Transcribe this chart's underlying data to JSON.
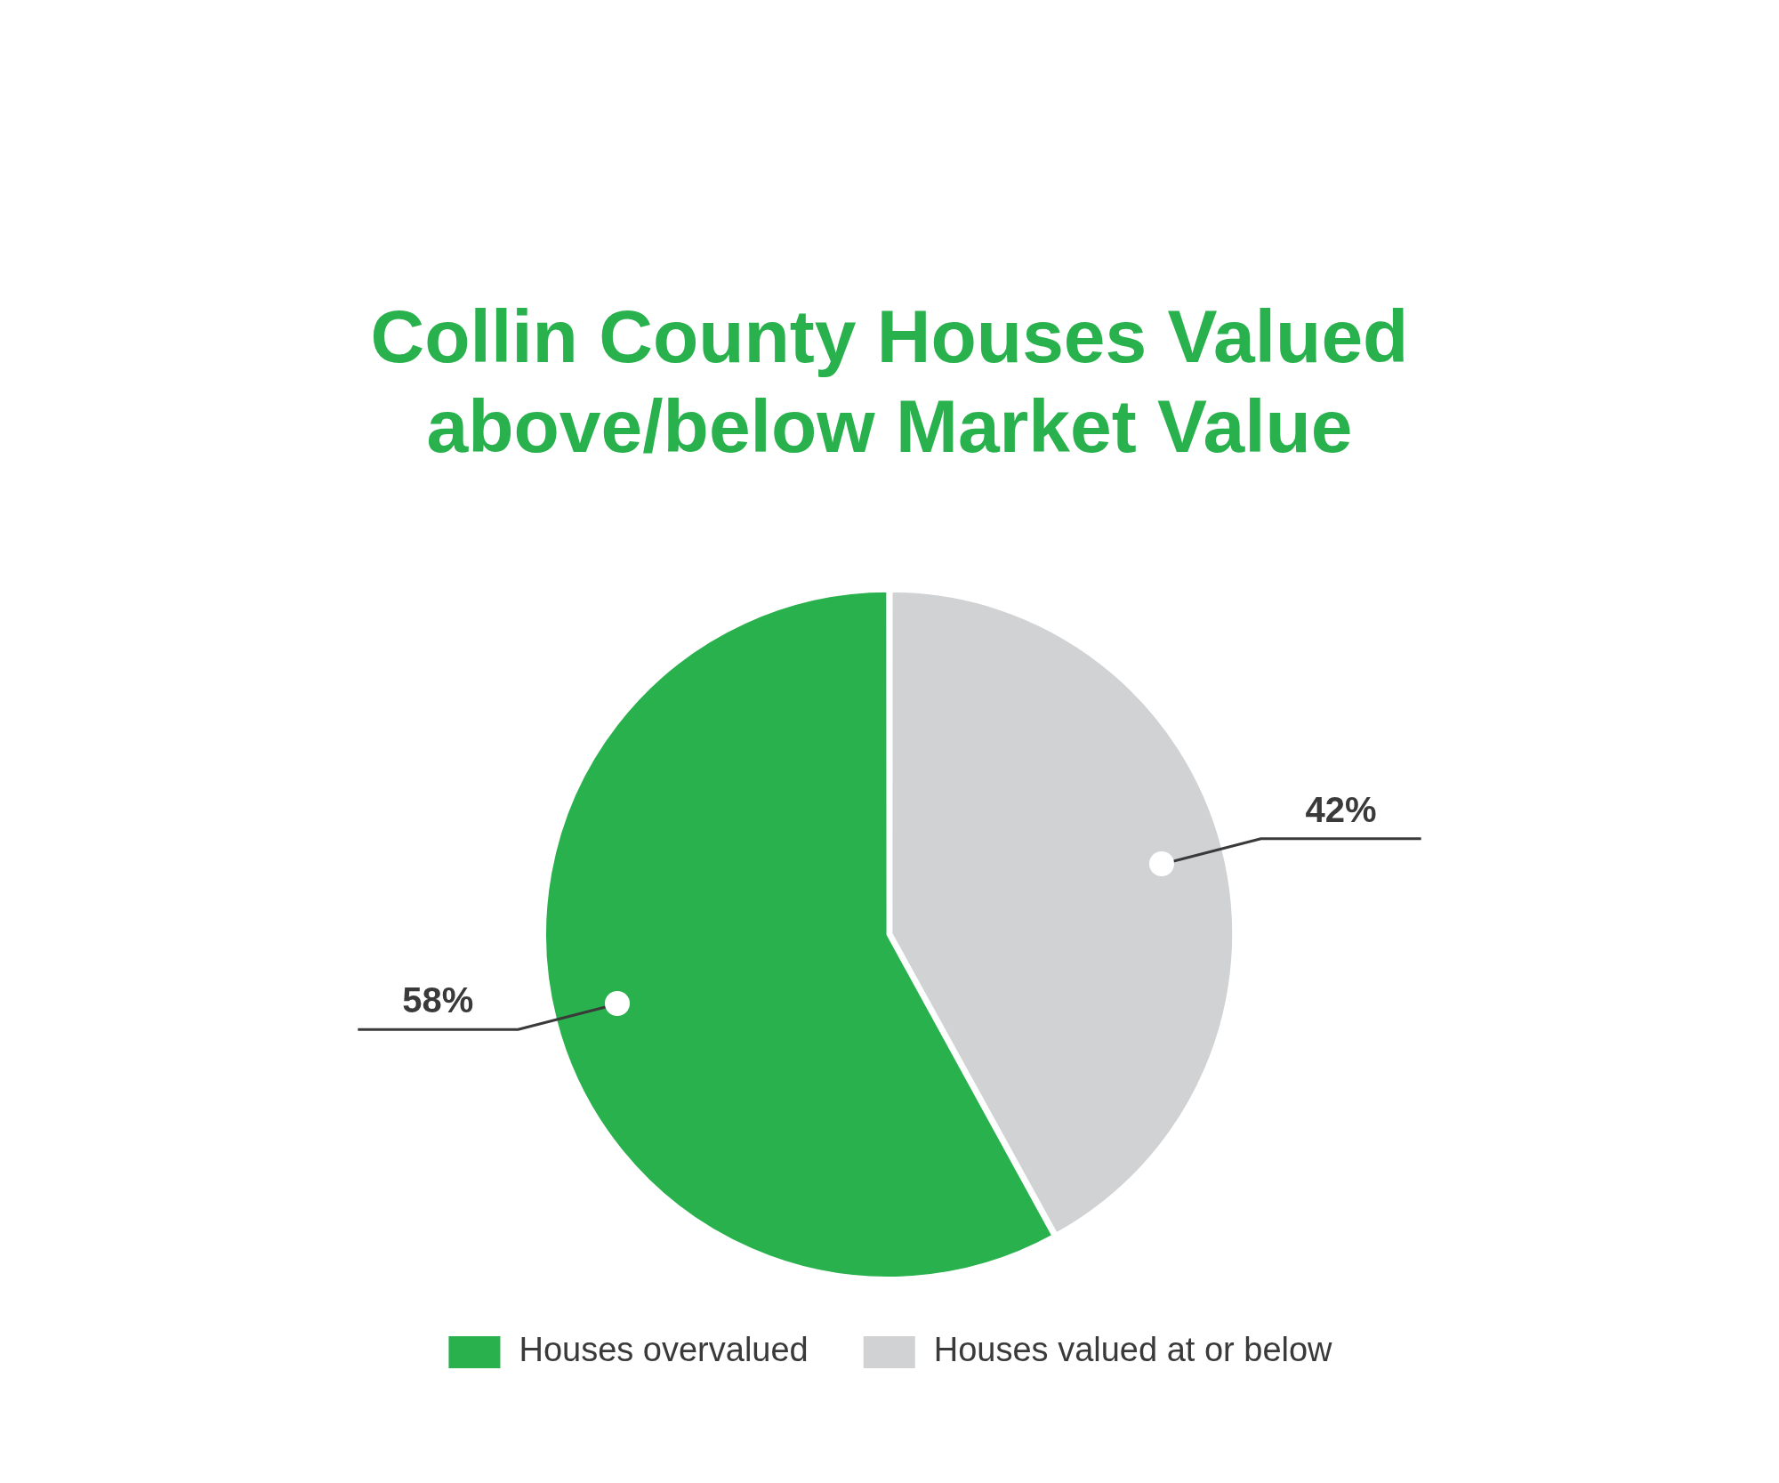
{
  "chart_data": {
    "type": "pie",
    "title": "Collin County Houses Valued above/below Market Value",
    "categories": [
      "Houses overvalued",
      "Houses valued at or below"
    ],
    "values": [
      58,
      42
    ],
    "value_labels": [
      "58%",
      "42%"
    ],
    "colors": [
      "#28b14c",
      "#d1d2d4"
    ],
    "legend": "bottom"
  }
}
